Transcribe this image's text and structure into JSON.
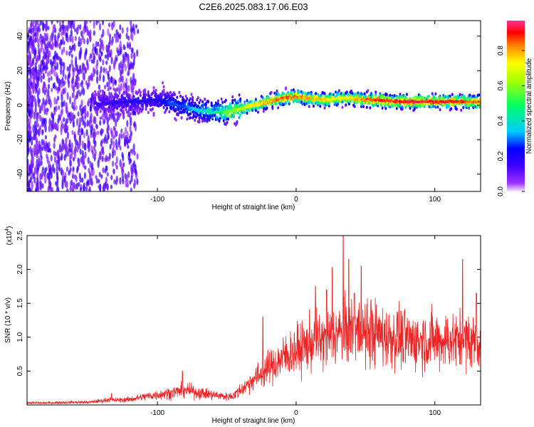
{
  "title": "C2E6.2025.083.17.06.E03",
  "chart_data": [
    {
      "type": "heatmap",
      "xlabel": "Height of straight line (km)",
      "ylabel": "Frequency (Hz)",
      "xlim": [
        -194,
        133
      ],
      "ylim": [
        -50,
        49
      ],
      "xticks": [
        -100,
        0,
        100
      ],
      "yticks": [
        -40,
        -20,
        0,
        20,
        40
      ],
      "colorbar": {
        "label": "Normalized spectral amplitude",
        "range": [
          0.0,
          0.97
        ],
        "ticks": [
          0.0,
          0.2,
          0.4,
          0.6,
          0.8
        ],
        "tick_labels": [
          "0.0",
          "0.2",
          "0.4",
          "0.6",
          "0.8"
        ]
      },
      "ridge": {
        "x": [
          -140,
          -120,
          -100,
          -90,
          -80,
          -70,
          -60,
          -50,
          -40,
          -30,
          -20,
          -10,
          0,
          10,
          20,
          30,
          40,
          50,
          60,
          70,
          80,
          90,
          100,
          110,
          120,
          130
        ],
        "frequency": [
          1,
          2,
          3,
          1,
          -1,
          -3,
          -4,
          -4,
          -2,
          0,
          2,
          4,
          5,
          4,
          3,
          4,
          4,
          3,
          3,
          2,
          2,
          2,
          2,
          2,
          2,
          2
        ],
        "amplitude": [
          0.15,
          0.2,
          0.2,
          0.3,
          0.3,
          0.4,
          0.45,
          0.6,
          0.7,
          0.8,
          0.85,
          0.9,
          0.9,
          0.85,
          0.8,
          0.75,
          0.8,
          0.9,
          0.95,
          0.95,
          0.97,
          0.97,
          0.95,
          0.95,
          0.95,
          0.9
        ]
      }
    },
    {
      "type": "line",
      "xlabel": "Height of straight line (km)",
      "ylabel": "SNR (10 * v/v)",
      "y_multiplier": "(x10^4)",
      "xlim": [
        -194,
        133
      ],
      "ylim": [
        0,
        2.5
      ],
      "xticks": [
        -100,
        0,
        100
      ],
      "yticks": [
        0.5,
        1.0,
        1.5,
        2.0,
        2.5
      ],
      "ytick_labels": [
        "0.5",
        "1.0",
        "1.5",
        "2.0",
        "2.5"
      ],
      "color": "#ee2222",
      "series": [
        {
          "x": [
            -194,
            -180,
            -160,
            -150,
            -140,
            -135,
            -130,
            -120,
            -110,
            -100,
            -90,
            -80,
            -70,
            -60,
            -50,
            -45,
            -40,
            -35,
            -30,
            -25,
            -20,
            -15,
            -10,
            -5,
            0,
            5,
            10,
            15,
            20,
            25,
            30,
            35,
            40,
            45,
            50,
            55,
            60,
            65,
            70,
            75,
            80,
            85,
            90,
            95,
            100,
            105,
            110,
            115,
            120,
            125,
            130,
            133
          ],
          "y": [
            0.03,
            0.03,
            0.04,
            0.04,
            0.06,
            0.08,
            0.07,
            0.08,
            0.12,
            0.15,
            0.18,
            0.22,
            0.18,
            0.15,
            0.12,
            0.14,
            0.22,
            0.3,
            0.4,
            0.45,
            0.55,
            0.6,
            0.7,
            0.75,
            0.8,
            0.85,
            0.9,
            0.95,
            0.95,
            1.0,
            1.05,
            1.05,
            1.1,
            1.1,
            1.05,
            1.05,
            1.05,
            1.0,
            1.0,
            1.0,
            0.95,
            0.95,
            0.95,
            0.95,
            0.95,
            0.95,
            0.95,
            0.95,
            0.95,
            0.95,
            0.95,
            0.9
          ],
          "spikes": [
            {
              "x": -133,
              "y": 0.17
            },
            {
              "x": -82,
              "y": 0.5
            },
            {
              "x": -24,
              "y": 1.3
            },
            {
              "x": 14,
              "y": 1.75
            },
            {
              "x": 22,
              "y": 1.7
            },
            {
              "x": 26,
              "y": 2.03
            },
            {
              "x": 34,
              "y": 2.5
            },
            {
              "x": 38,
              "y": 2.15
            },
            {
              "x": 42,
              "y": 1.65
            },
            {
              "x": 47,
              "y": 2.05
            },
            {
              "x": 54,
              "y": 1.55
            },
            {
              "x": 120,
              "y": 2.15
            },
            {
              "x": 130,
              "y": 1.65
            }
          ]
        }
      ]
    }
  ]
}
